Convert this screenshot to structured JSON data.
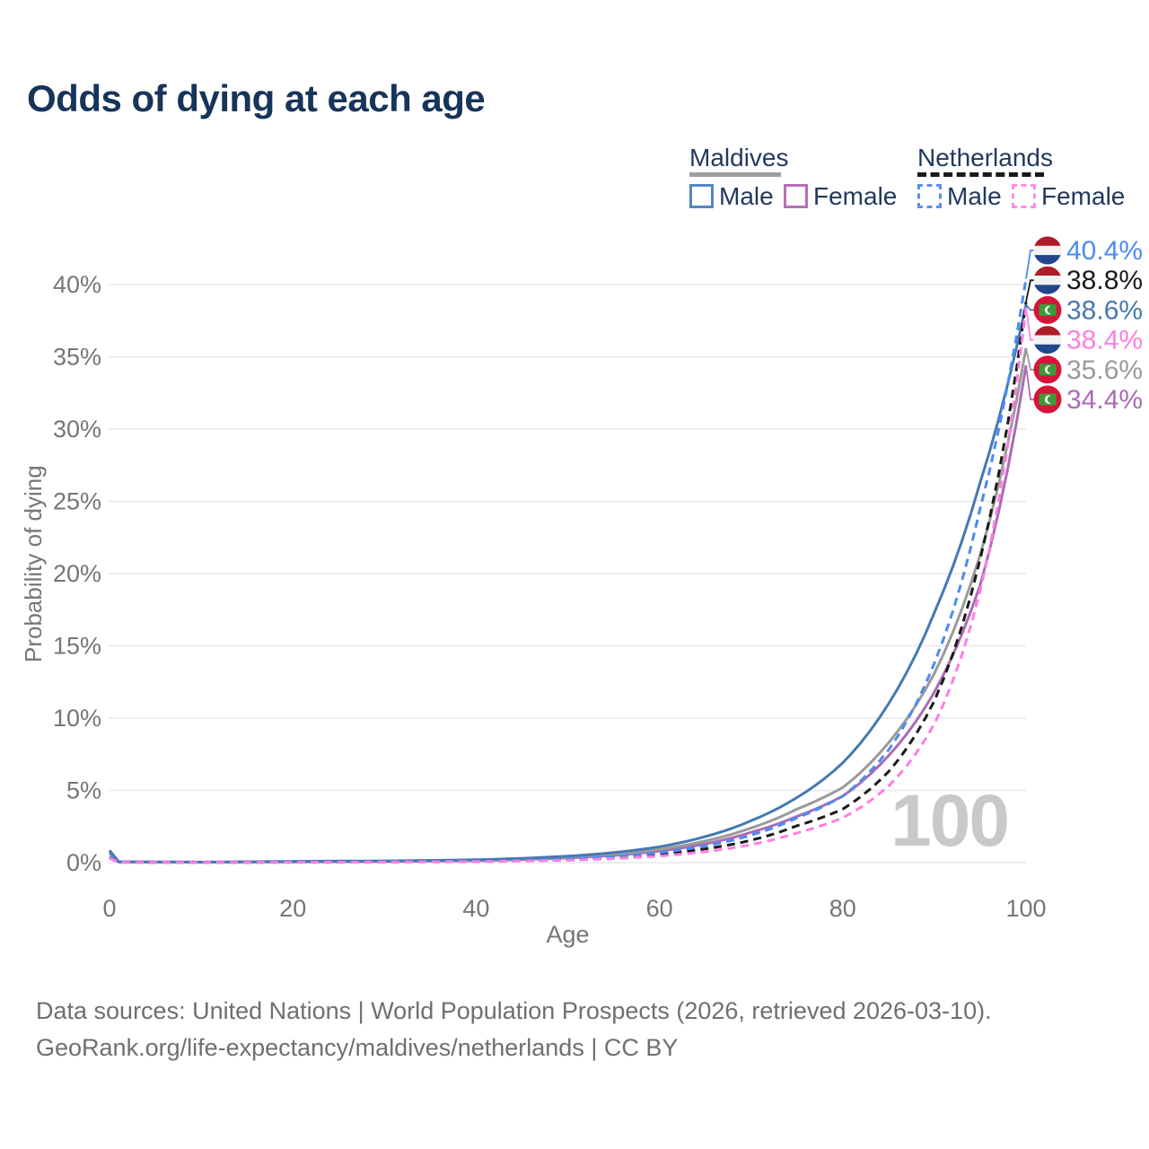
{
  "title": "Odds of dying at each age",
  "watermark": "100",
  "legend": {
    "groups": [
      {
        "name": "Maldives",
        "line_style": "solid",
        "underline_color": "#9e9e9e",
        "items": [
          {
            "label": "Male",
            "color": "#5585c5",
            "dashed": false
          },
          {
            "label": "Female",
            "color": "#b66fb6",
            "dashed": false
          }
        ]
      },
      {
        "name": "Netherlands",
        "line_style": "dashed",
        "underline_color": "#1a1a1a",
        "items": [
          {
            "label": "Male",
            "color": "#5b8ff0",
            "dashed": true
          },
          {
            "label": "Female",
            "color": "#ff8ce4",
            "dashed": true
          }
        ]
      }
    ]
  },
  "footer": {
    "line1": "Data sources: United Nations | World Population Prospects (2026, retrieved 2026-03-10).",
    "line2": "GeoRank.org/life-expectancy/maldives/netherlands | CC BY"
  },
  "chart_data": {
    "type": "line",
    "title": "Odds of dying at each age",
    "xlabel": "Age",
    "ylabel": "Probability of dying",
    "xlim": [
      0,
      100
    ],
    "ylim_pct": [
      0,
      42
    ],
    "x_ticks": [
      0,
      20,
      40,
      60,
      80,
      100
    ],
    "y_ticks_pct": [
      0,
      5,
      10,
      15,
      20,
      25,
      30,
      35,
      40
    ],
    "grid": "horizontal",
    "grid_color": "#ededed",
    "tick_color": "#757575",
    "legend_position": "top-right",
    "current_age_indicator": "100",
    "ages": [
      0,
      1,
      10,
      20,
      30,
      40,
      50,
      55,
      60,
      65,
      70,
      75,
      80,
      85,
      90,
      95,
      100
    ],
    "series": [
      {
        "name": "Netherlands Male",
        "country": "Netherlands",
        "sex": "Male",
        "flag": "nl",
        "color": "#4c8bf2",
        "dashed": true,
        "end_label": "40.4%",
        "end_value_pct": 40.4,
        "values_pct": [
          0.4,
          0.03,
          0.01,
          0.04,
          0.06,
          0.1,
          0.25,
          0.42,
          0.7,
          1.15,
          1.9,
          3.1,
          4.6,
          7.8,
          13.8,
          24.5,
          40.4
        ]
      },
      {
        "name": "Netherlands Both sexes",
        "country": "Netherlands",
        "sex": "Both",
        "flag": "nl",
        "color": "#1a1a1a",
        "dashed": true,
        "end_label": "38.8%",
        "end_value_pct": 38.8,
        "values_pct": [
          0.35,
          0.03,
          0.01,
          0.03,
          0.05,
          0.09,
          0.21,
          0.35,
          0.58,
          0.95,
          1.55,
          2.55,
          3.7,
          6.3,
          11.2,
          21.0,
          38.8
        ]
      },
      {
        "name": "Maldives Male",
        "country": "Maldives",
        "sex": "Male",
        "flag": "mv",
        "color": "#4579b2",
        "dashed": false,
        "end_label": "38.6%",
        "end_value_pct": 38.6,
        "values_pct": [
          0.85,
          0.06,
          0.04,
          0.09,
          0.12,
          0.2,
          0.45,
          0.7,
          1.1,
          1.8,
          2.9,
          4.5,
          6.9,
          11.0,
          17.3,
          26.3,
          38.6
        ]
      },
      {
        "name": "Netherlands Female",
        "country": "Netherlands",
        "sex": "Female",
        "flag": "nl",
        "color": "#ff7ee2",
        "dashed": true,
        "end_label": "38.4%",
        "end_value_pct": 38.4,
        "values_pct": [
          0.3,
          0.02,
          0.01,
          0.02,
          0.04,
          0.07,
          0.17,
          0.28,
          0.46,
          0.76,
          1.25,
          2.05,
          3.1,
          5.3,
          9.6,
          18.8,
          38.4
        ]
      },
      {
        "name": "Maldives Both sexes",
        "country": "Maldives",
        "sex": "Both",
        "flag": "mv",
        "color": "#9a9a9a",
        "dashed": false,
        "end_label": "35.6%",
        "end_value_pct": 35.6,
        "values_pct": [
          0.75,
          0.05,
          0.03,
          0.07,
          0.1,
          0.17,
          0.38,
          0.58,
          0.92,
          1.5,
          2.4,
          3.7,
          5.2,
          8.3,
          13.1,
          21.3,
          35.6
        ]
      },
      {
        "name": "Maldives Female",
        "country": "Maldives",
        "sex": "Female",
        "flag": "mv",
        "color": "#aa6bb4",
        "dashed": false,
        "end_label": "34.4%",
        "end_value_pct": 34.4,
        "values_pct": [
          0.65,
          0.05,
          0.03,
          0.05,
          0.08,
          0.14,
          0.32,
          0.5,
          0.8,
          1.3,
          2.1,
          3.2,
          4.6,
          7.4,
          11.8,
          19.2,
          34.4
        ]
      }
    ],
    "flag_colors": {
      "nl_red": "#AE1C28",
      "nl_white": "#F2F2F2",
      "nl_blue": "#21468B",
      "mv_red": "#D7143A",
      "mv_green": "#3B9B38",
      "mv_crescent": "#FFFFFF"
    }
  }
}
